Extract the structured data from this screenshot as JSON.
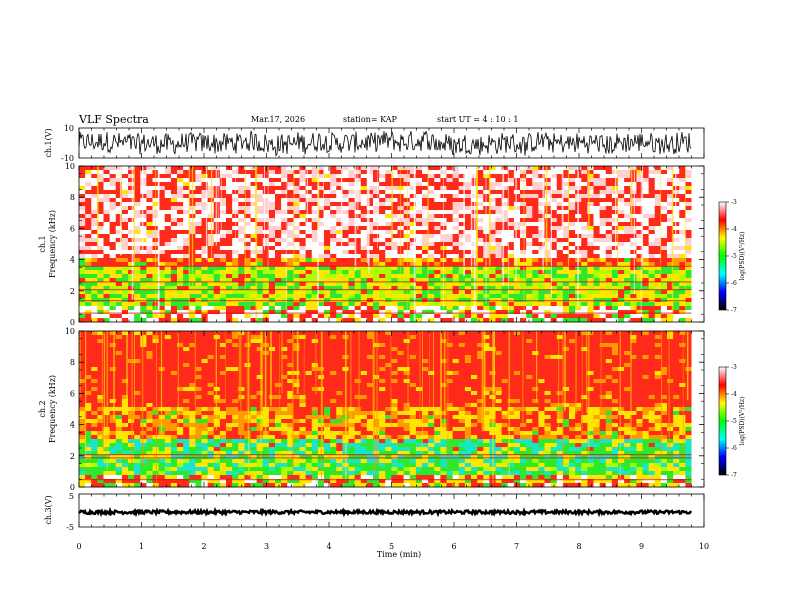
{
  "header": {
    "title": "VLF Spectra",
    "date": "Mar.17, 2026",
    "station": "station= KAP",
    "start_ut": "start  UT =   4 : 10 : 1"
  },
  "chart_data": [
    {
      "type": "line",
      "name": "ch1-waveform",
      "ylabel": "ch.1(V)",
      "ylim": [
        -10,
        10
      ],
      "yticks": [
        "10",
        "-10"
      ],
      "x_range_min": [
        0,
        9.8
      ],
      "signal_amplitude_V": [
        -8,
        6
      ],
      "color": "#000000"
    },
    {
      "type": "heatmap",
      "name": "ch1-spectrogram",
      "ylabel_line1": "ch.1",
      "ylabel_line2": "Frequency (kHz)",
      "ylim": [
        0,
        10
      ],
      "yticks": [
        "0",
        "2",
        "4",
        "6",
        "8",
        "10"
      ],
      "colorbar": {
        "label": "log(PSD)(V²/Hz)",
        "range": [
          -7,
          -3
        ],
        "ticks": [
          "-3",
          "-4",
          "-5",
          "-6",
          "-7"
        ],
        "colors": [
          "#ffffff",
          "#ff0000",
          "#ffff00",
          "#00ff00",
          "#00ffff",
          "#0000ff",
          "#000000"
        ]
      },
      "bands": [
        {
          "from_kHz": 0,
          "to_kHz": 1,
          "level": "white/mixed"
        },
        {
          "from_kHz": 1,
          "to_kHz": 3.5,
          "level": "yellow-green"
        },
        {
          "from_kHz": 3.5,
          "to_kHz": 4.2,
          "level": "red-yellow"
        },
        {
          "from_kHz": 4.2,
          "to_kHz": 10,
          "level": "red-white"
        }
      ]
    },
    {
      "type": "heatmap",
      "name": "ch2-spectrogram",
      "ylabel_line1": "ch.2",
      "ylabel_line2": "Frequency (kHz)",
      "ylim": [
        0,
        10
      ],
      "yticks": [
        "0",
        "2",
        "4",
        "6",
        "8",
        "10"
      ],
      "colorbar": {
        "label": "log(PSD)(V²/Hz)",
        "range": [
          -7,
          -3
        ],
        "ticks": [
          "-3",
          "-4",
          "-5",
          "-6",
          "-7"
        ],
        "colors": [
          "#ffffff",
          "#ff0000",
          "#ffff00",
          "#00ff00",
          "#00ffff",
          "#0000ff",
          "#000000"
        ]
      },
      "bands": [
        {
          "from_kHz": 0,
          "to_kHz": 0.8,
          "level": "mixed"
        },
        {
          "from_kHz": 0.8,
          "to_kHz": 2.2,
          "level": "green-cyan"
        },
        {
          "from_kHz": 2.2,
          "to_kHz": 3.2,
          "level": "cyan-green"
        },
        {
          "from_kHz": 3.2,
          "to_kHz": 5,
          "level": "yellow-orange"
        },
        {
          "from_kHz": 5,
          "to_kHz": 10,
          "level": "red"
        }
      ]
    },
    {
      "type": "line",
      "name": "ch3-waveform",
      "ylabel": "ch.3(V)",
      "ylim": [
        -5,
        5
      ],
      "yticks": [
        "5",
        "-5"
      ],
      "x_range_min": [
        0,
        9.8
      ],
      "signal_amplitude_V": [
        -1,
        0
      ],
      "color": "#000000"
    }
  ],
  "x_axis": {
    "label": "Time (min)",
    "ticks": [
      "0",
      "1",
      "2",
      "3",
      "4",
      "5",
      "6",
      "7",
      "8",
      "9",
      "10"
    ],
    "xlim": [
      0,
      10
    ]
  }
}
